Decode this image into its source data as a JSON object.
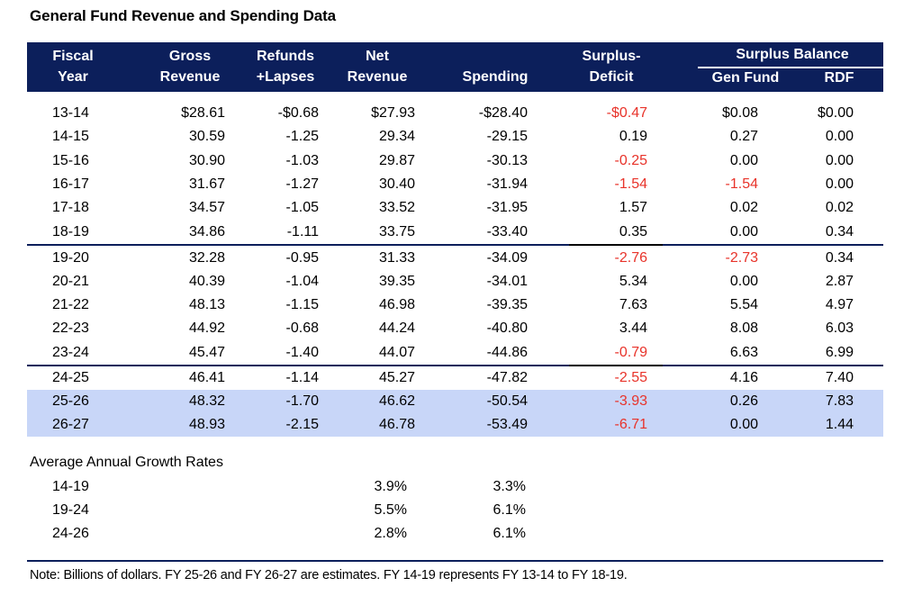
{
  "title": "General Fund Revenue and Spending Data",
  "header": {
    "fiscal_year": [
      "Fiscal",
      "Year"
    ],
    "gross_revenue": [
      "Gross",
      "Revenue"
    ],
    "refunds_lapses": [
      "Refunds",
      "+Lapses"
    ],
    "net_revenue": [
      "Net",
      "Revenue"
    ],
    "spending": "Spending",
    "surplus_deficit": [
      "Surplus-",
      "Deficit"
    ],
    "surplus_balance": "Surplus Balance",
    "gen_fund": "Gen Fund",
    "rdf": "RDF"
  },
  "colors": {
    "header_bg": "#0c1f5b",
    "negative_text": "#e8332a",
    "estimate_highlight": "#c8d6f8"
  },
  "rows": [
    {
      "fy": "13-14",
      "gross": "$28.61",
      "refunds": "-$0.68",
      "net": "$27.93",
      "spending": "-$28.40",
      "surplus": "-$0.47",
      "surplus_neg": true,
      "gen_fund": "$0.08",
      "gen_fund_neg": false,
      "rdf": "$0.00",
      "estimate": false
    },
    {
      "fy": "14-15",
      "gross": "30.59",
      "refunds": "-1.25",
      "net": "29.34",
      "spending": "-29.15",
      "surplus": "0.19",
      "surplus_neg": false,
      "gen_fund": "0.27",
      "gen_fund_neg": false,
      "rdf": "0.00",
      "estimate": false
    },
    {
      "fy": "15-16",
      "gross": "30.90",
      "refunds": "-1.03",
      "net": "29.87",
      "spending": "-30.13",
      "surplus": "-0.25",
      "surplus_neg": true,
      "gen_fund": "0.00",
      "gen_fund_neg": false,
      "rdf": "0.00",
      "estimate": false
    },
    {
      "fy": "16-17",
      "gross": "31.67",
      "refunds": "-1.27",
      "net": "30.40",
      "spending": "-31.94",
      "surplus": "-1.54",
      "surplus_neg": true,
      "gen_fund": "-1.54",
      "gen_fund_neg": true,
      "rdf": "0.00",
      "estimate": false
    },
    {
      "fy": "17-18",
      "gross": "34.57",
      "refunds": "-1.05",
      "net": "33.52",
      "spending": "-31.95",
      "surplus": "1.57",
      "surplus_neg": false,
      "gen_fund": "0.02",
      "gen_fund_neg": false,
      "rdf": "0.02",
      "estimate": false
    },
    {
      "fy": "18-19",
      "gross": "34.86",
      "refunds": "-1.11",
      "net": "33.75",
      "spending": "-33.40",
      "surplus": "0.35",
      "surplus_neg": false,
      "gen_fund": "0.00",
      "gen_fund_neg": false,
      "rdf": "0.34",
      "estimate": false
    },
    {
      "fy": "19-20",
      "gross": "32.28",
      "refunds": "-0.95",
      "net": "31.33",
      "spending": "-34.09",
      "surplus": "-2.76",
      "surplus_neg": true,
      "gen_fund": "-2.73",
      "gen_fund_neg": true,
      "rdf": "0.34",
      "estimate": false
    },
    {
      "fy": "20-21",
      "gross": "40.39",
      "refunds": "-1.04",
      "net": "39.35",
      "spending": "-34.01",
      "surplus": "5.34",
      "surplus_neg": false,
      "gen_fund": "0.00",
      "gen_fund_neg": false,
      "rdf": "2.87",
      "estimate": false
    },
    {
      "fy": "21-22",
      "gross": "48.13",
      "refunds": "-1.15",
      "net": "46.98",
      "spending": "-39.35",
      "surplus": "7.63",
      "surplus_neg": false,
      "gen_fund": "5.54",
      "gen_fund_neg": false,
      "rdf": "4.97",
      "estimate": false
    },
    {
      "fy": "22-23",
      "gross": "44.92",
      "refunds": "-0.68",
      "net": "44.24",
      "spending": "-40.80",
      "surplus": "3.44",
      "surplus_neg": false,
      "gen_fund": "8.08",
      "gen_fund_neg": false,
      "rdf": "6.03",
      "estimate": false
    },
    {
      "fy": "23-24",
      "gross": "45.47",
      "refunds": "-1.40",
      "net": "44.07",
      "spending": "-44.86",
      "surplus": "-0.79",
      "surplus_neg": true,
      "gen_fund": "6.63",
      "gen_fund_neg": false,
      "rdf": "6.99",
      "estimate": false
    },
    {
      "fy": "24-25",
      "gross": "46.41",
      "refunds": "-1.14",
      "net": "45.27",
      "spending": "-47.82",
      "surplus": "-2.55",
      "surplus_neg": true,
      "gen_fund": "4.16",
      "gen_fund_neg": false,
      "rdf": "7.40",
      "estimate": false
    },
    {
      "fy": "25-26",
      "gross": "48.32",
      "refunds": "-1.70",
      "net": "46.62",
      "spending": "-50.54",
      "surplus": "-3.93",
      "surplus_neg": true,
      "gen_fund": "0.26",
      "gen_fund_neg": false,
      "rdf": "7.83",
      "estimate": true
    },
    {
      "fy": "26-27",
      "gross": "48.93",
      "refunds": "-2.15",
      "net": "46.78",
      "spending": "-53.49",
      "surplus": "-6.71",
      "surplus_neg": true,
      "gen_fund": "0.00",
      "gen_fund_neg": false,
      "rdf": "1.44",
      "estimate": true
    }
  ],
  "growth": {
    "title": "Average Annual Growth Rates",
    "rows": [
      {
        "period": "14-19",
        "net_revenue": "3.9%",
        "spending": "3.3%"
      },
      {
        "period": "19-24",
        "net_revenue": "5.5%",
        "spending": "6.1%"
      },
      {
        "period": "24-26",
        "net_revenue": "2.8%",
        "spending": "6.1%"
      }
    ]
  },
  "note": "Note: Billions of dollars. FY 25-26 and FY 26-27 are estimates. FY 14-19 represents FY 13-14 to FY 18-19."
}
